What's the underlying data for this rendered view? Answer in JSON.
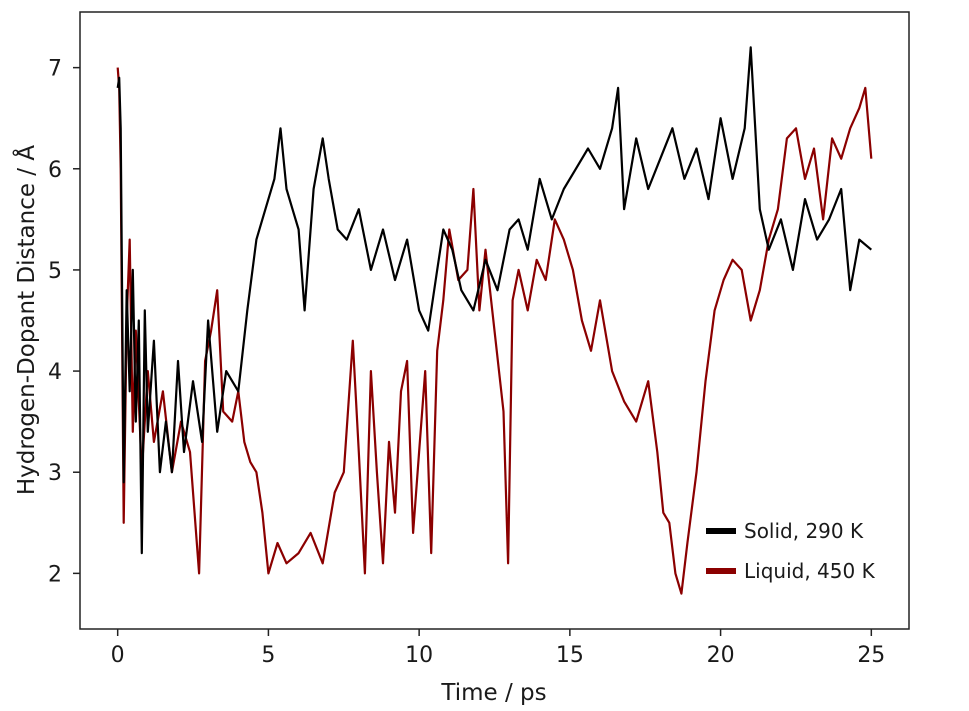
{
  "chart_data": {
    "type": "line",
    "title": "",
    "xlabel": "Time / ps",
    "ylabel": "Hydrogen-Dopant Distance / Å",
    "xlim": [
      -1.25,
      26.25
    ],
    "ylim": [
      1.45,
      7.55
    ],
    "x_ticks": [
      0,
      5,
      10,
      15,
      20,
      25
    ],
    "y_ticks": [
      2,
      3,
      4,
      5,
      6,
      7
    ],
    "grid": false,
    "legend_position": "bottom-right",
    "series": [
      {
        "name": "Solid, 290 K",
        "color": "#000000",
        "x": [
          0,
          0.05,
          0.1,
          0.2,
          0.3,
          0.4,
          0.5,
          0.6,
          0.7,
          0.8,
          0.9,
          1.0,
          1.2,
          1.4,
          1.6,
          1.8,
          2.0,
          2.2,
          2.5,
          2.8,
          3.0,
          3.3,
          3.6,
          4.0,
          4.3,
          4.6,
          4.9,
          5.2,
          5.4,
          5.6,
          5.8,
          6.0,
          6.2,
          6.5,
          6.8,
          7.0,
          7.3,
          7.6,
          8.0,
          8.4,
          8.8,
          9.2,
          9.6,
          10.0,
          10.3,
          10.6,
          10.8,
          11.1,
          11.4,
          11.8,
          12.2,
          12.6,
          13.0,
          13.3,
          13.6,
          14.0,
          14.4,
          14.8,
          15.2,
          15.6,
          16.0,
          16.4,
          16.6,
          16.8,
          17.2,
          17.6,
          18.0,
          18.4,
          18.8,
          19.2,
          19.6,
          20.0,
          20.4,
          20.8,
          21.0,
          21.3,
          21.6,
          22.0,
          22.4,
          22.8,
          23.2,
          23.6,
          24.0,
          24.3,
          24.6,
          25.0
        ],
        "y": [
          6.8,
          6.9,
          6.4,
          2.9,
          4.8,
          3.8,
          5.0,
          3.5,
          4.5,
          2.2,
          4.6,
          3.4,
          4.3,
          3.0,
          3.5,
          3.0,
          4.1,
          3.2,
          3.9,
          3.3,
          4.5,
          3.4,
          4.0,
          3.8,
          4.6,
          5.3,
          5.6,
          5.9,
          6.4,
          5.8,
          5.6,
          5.4,
          4.6,
          5.8,
          6.3,
          5.9,
          5.4,
          5.3,
          5.6,
          5.0,
          5.4,
          4.9,
          5.3,
          4.6,
          4.4,
          5.0,
          5.4,
          5.2,
          4.8,
          4.6,
          5.1,
          4.8,
          5.4,
          5.5,
          5.2,
          5.9,
          5.5,
          5.8,
          6.0,
          6.2,
          6.0,
          6.4,
          6.8,
          5.6,
          6.3,
          5.8,
          6.1,
          6.4,
          5.9,
          6.2,
          5.7,
          6.5,
          5.9,
          6.4,
          7.2,
          5.6,
          5.2,
          5.5,
          5.0,
          5.7,
          5.3,
          5.5,
          5.8,
          4.8,
          5.3,
          5.2
        ]
      },
      {
        "name": "Liquid, 450 K",
        "color": "#8b0000",
        "x": [
          0,
          0.05,
          0.1,
          0.2,
          0.3,
          0.4,
          0.5,
          0.6,
          0.8,
          1.0,
          1.2,
          1.5,
          1.8,
          2.1,
          2.4,
          2.7,
          2.9,
          3.1,
          3.3,
          3.5,
          3.8,
          4.0,
          4.2,
          4.4,
          4.6,
          4.8,
          5.0,
          5.3,
          5.6,
          6.0,
          6.4,
          6.8,
          7.2,
          7.5,
          7.8,
          8.0,
          8.2,
          8.4,
          8.6,
          8.8,
          9.0,
          9.2,
          9.4,
          9.6,
          9.8,
          10.0,
          10.2,
          10.4,
          10.6,
          10.8,
          11.0,
          11.3,
          11.6,
          11.8,
          12.0,
          12.2,
          12.5,
          12.8,
          12.95,
          13.1,
          13.3,
          13.6,
          13.9,
          14.2,
          14.5,
          14.8,
          15.1,
          15.4,
          15.7,
          16.0,
          16.4,
          16.8,
          17.2,
          17.6,
          17.9,
          18.1,
          18.3,
          18.5,
          18.7,
          18.9,
          19.2,
          19.5,
          19.8,
          20.1,
          20.4,
          20.7,
          21.0,
          21.3,
          21.6,
          21.9,
          22.2,
          22.5,
          22.8,
          23.1,
          23.4,
          23.7,
          24.0,
          24.3,
          24.6,
          24.8,
          25.0
        ],
        "y": [
          7.0,
          6.8,
          6.0,
          2.5,
          4.5,
          5.3,
          3.4,
          4.4,
          3.0,
          4.0,
          3.3,
          3.8,
          3.0,
          3.5,
          3.2,
          2.0,
          4.1,
          4.4,
          4.8,
          3.6,
          3.5,
          3.8,
          3.3,
          3.1,
          3.0,
          2.6,
          2.0,
          2.3,
          2.1,
          2.2,
          2.4,
          2.1,
          2.8,
          3.0,
          4.3,
          3.2,
          2.0,
          4.0,
          3.0,
          2.1,
          3.3,
          2.6,
          3.8,
          4.1,
          2.4,
          3.2,
          4.0,
          2.2,
          4.2,
          4.7,
          5.4,
          4.9,
          5.0,
          5.8,
          4.6,
          5.2,
          4.4,
          3.6,
          2.1,
          4.7,
          5.0,
          4.6,
          5.1,
          4.9,
          5.5,
          5.3,
          5.0,
          4.5,
          4.2,
          4.7,
          4.0,
          3.7,
          3.5,
          3.9,
          3.2,
          2.6,
          2.5,
          2.0,
          1.8,
          2.3,
          3.0,
          3.9,
          4.6,
          4.9,
          5.1,
          5.0,
          4.5,
          4.8,
          5.3,
          5.6,
          6.3,
          6.4,
          5.9,
          6.2,
          5.5,
          6.3,
          6.1,
          6.4,
          6.6,
          6.8,
          6.1
        ]
      }
    ]
  }
}
